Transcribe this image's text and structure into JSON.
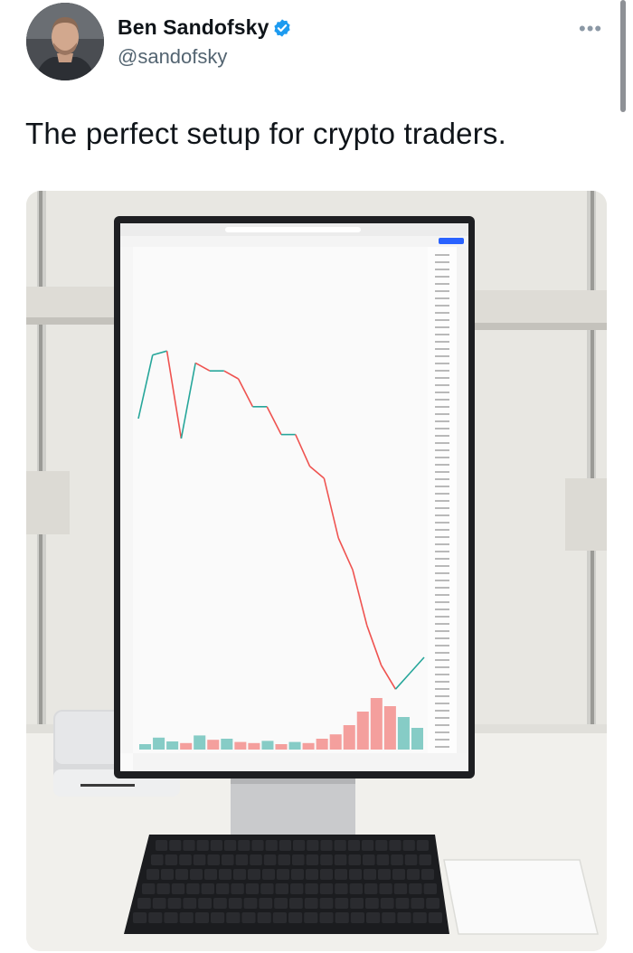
{
  "tweet": {
    "author": {
      "display_name": "Ben Sandofsky",
      "handle": "@sandofsky",
      "verified": true,
      "avatar_icon": "profile-photo"
    },
    "more_icon": "more-dots-icon",
    "text": "The perfect setup for crypto traders.",
    "accent_color": "#1d9bf0"
  },
  "chart_data": {
    "type": "line",
    "title": "",
    "xlabel": "",
    "ylabel": "",
    "x": [
      0,
      5,
      10,
      15,
      20,
      25,
      30,
      35,
      40,
      45,
      50,
      55,
      60,
      65,
      70,
      75,
      80,
      85,
      90,
      95,
      100
    ],
    "values": [
      0.7,
      0.86,
      0.87,
      0.65,
      0.84,
      0.82,
      0.82,
      0.8,
      0.73,
      0.73,
      0.66,
      0.66,
      0.58,
      0.55,
      0.4,
      0.32,
      0.18,
      0.08,
      0.02,
      0.06,
      0.1
    ],
    "ylim": [
      0,
      1
    ],
    "volume": [
      0.1,
      0.22,
      0.15,
      0.12,
      0.26,
      0.18,
      0.2,
      0.14,
      0.12,
      0.16,
      0.1,
      0.14,
      0.12,
      0.2,
      0.28,
      0.45,
      0.7,
      0.95,
      0.8,
      0.6,
      0.4
    ],
    "up_color": "#26a69a",
    "down_color": "#ef5350",
    "grid": false
  }
}
